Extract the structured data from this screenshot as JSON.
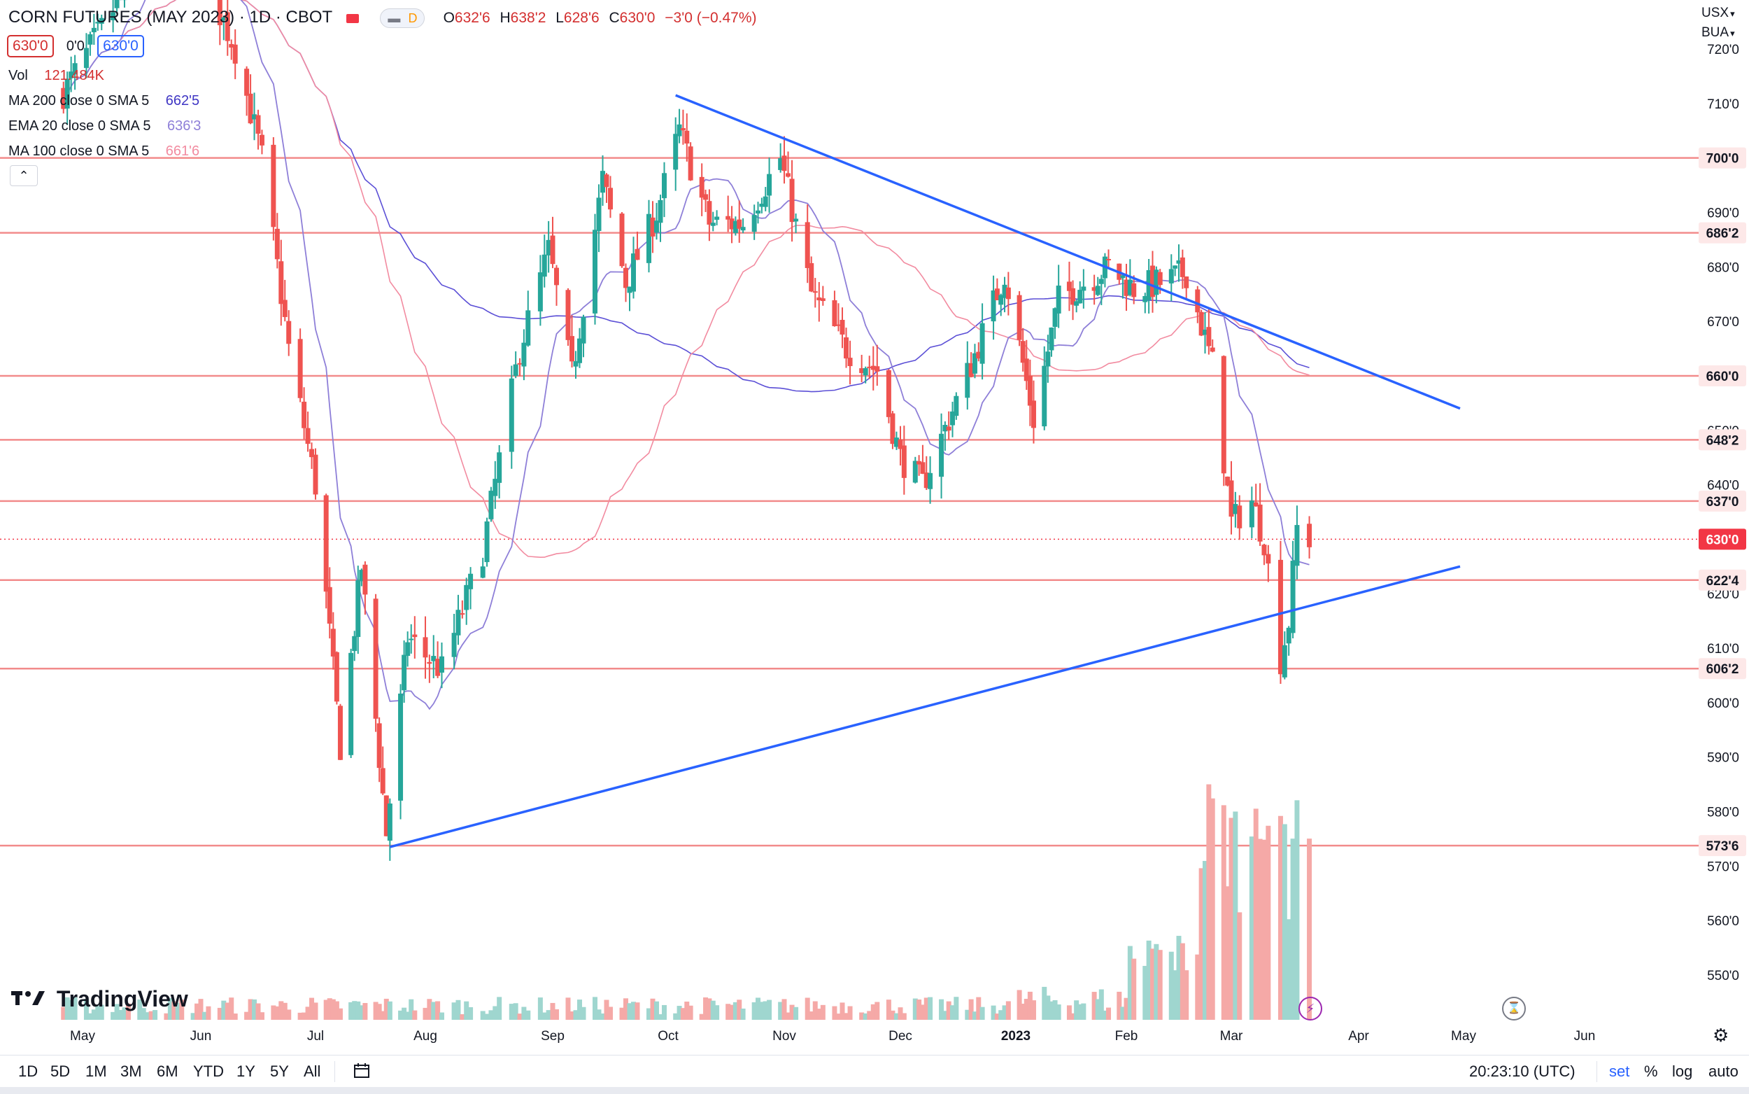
{
  "header": {
    "symbol": "CORN FUTURES (MAY 2023) · 1D · CBOT",
    "badge_d": "D",
    "o_label": "O",
    "o_value": "632'6",
    "h_label": "H",
    "h_value": "638'2",
    "l_label": "L",
    "l_value": "628'6",
    "c_label": "C",
    "c_value": "630'0",
    "change": "−3'0 (−0.47%)",
    "sell_price": "630'0",
    "spread": "0'0",
    "buy_price": "630'0"
  },
  "indicators": {
    "vol_label": "Vol",
    "vol_value": "121.484K",
    "ma200_label": "MA 200 close 0 SMA 5",
    "ma200_value": "662'5",
    "ema20_label": "EMA 20 close 0 SMA 5",
    "ema20_value": "636'3",
    "ma100_label": "MA 100 close 0 SMA 5",
    "ma100_value": "661'6"
  },
  "top_right": {
    "currency": "USX",
    "unit": "BUA"
  },
  "colors": {
    "up": "#26a69a",
    "down": "#ef5350",
    "hline": "#f28b8b",
    "trend": "#2962ff",
    "ma200": "#5b4fd6",
    "ema20": "#8e7fd8",
    "ma100": "#f28ba0",
    "price_tag": "#f23645"
  },
  "chart_data": {
    "type": "candlestick",
    "title": "CORN FUTURES (MAY 2023) · 1D · CBOT",
    "price_axis_ticks": [
      "720'0",
      "710'0",
      "700'0",
      "690'0",
      "680'0",
      "670'0",
      "660'0",
      "650'0",
      "640'0",
      "630'0",
      "620'0",
      "610'0",
      "600'0",
      "590'0",
      "580'0",
      "570'0",
      "560'0",
      "550'0"
    ],
    "time_axis_labels": [
      "May",
      "Jun",
      "Jul",
      "Aug",
      "Sep",
      "Oct",
      "Nov",
      "Dec",
      "2023",
      "Feb",
      "Mar",
      "Apr",
      "May",
      "Jun"
    ],
    "horizontal_levels": [
      "700'0",
      "686'2",
      "660'0",
      "648'2",
      "637'0",
      "630'0",
      "622'4",
      "606'2",
      "573'6"
    ],
    "last_price": "630'0",
    "trendlines": [
      {
        "from": {
          "date": "2022-10-03",
          "price": 711.5
        },
        "to": {
          "date": "2023-04-30",
          "price": 654
        }
      },
      {
        "from": {
          "date": "2022-07-22",
          "price": 573.5
        },
        "to": {
          "date": "2023-04-30",
          "price": 625
        }
      }
    ]
  },
  "watermark": {
    "logo_text": "TradingView"
  },
  "bottom_toolbar": {
    "timeframes": [
      "1D",
      "5D",
      "1M",
      "3M",
      "6M",
      "YTD",
      "1Y",
      "5Y",
      "All"
    ],
    "clock": "20:23:10 (UTC)",
    "set_label": "set",
    "percent_label": "%",
    "log_label": "log",
    "auto_label": "auto"
  }
}
